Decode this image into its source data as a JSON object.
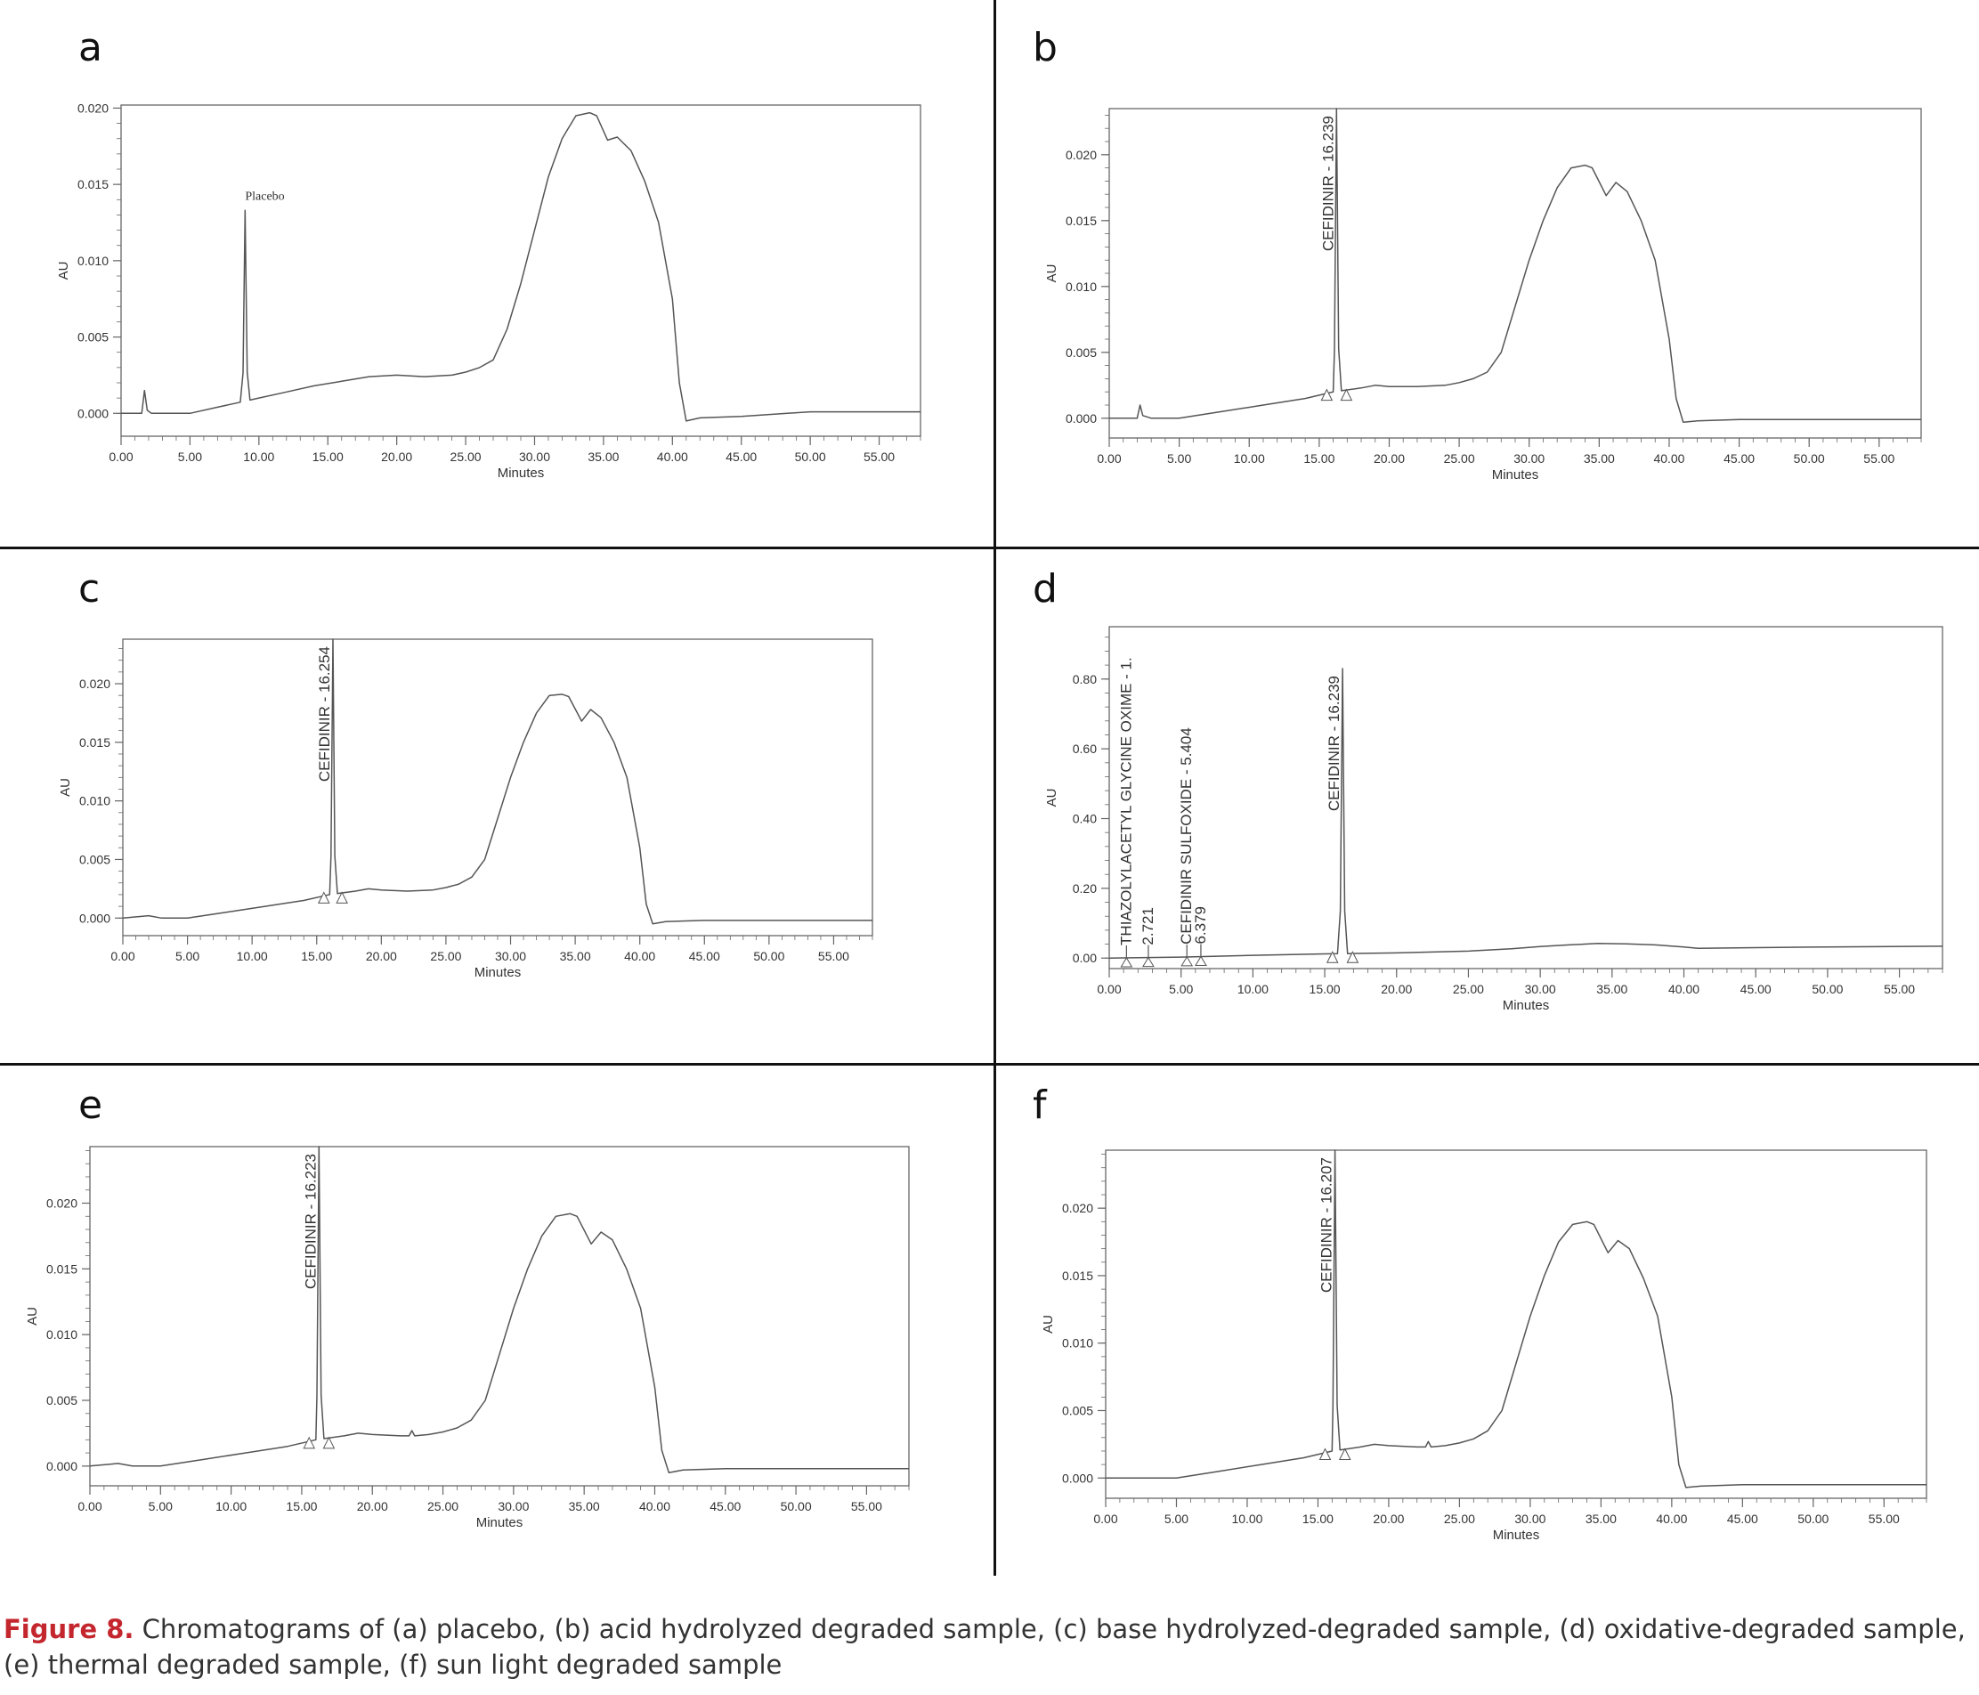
{
  "figure": {
    "caption_label": "Figure 8.",
    "caption_text": " Chromatograms of (a) placebo, (b) acid hydrolyzed degraded sample, (c) base hydrolyzed-degraded sample, (d) oxidative-degraded sample, (e) thermal degraded sample, (f) sun light degraded sample"
  },
  "colors": {
    "trace": "#555555",
    "frame": "#666666",
    "accent": "#c4262e"
  },
  "chart_data": [
    {
      "panel": "a",
      "type": "line",
      "xlabel": "Minutes",
      "ylabel": "AU",
      "xlim": [
        0,
        58
      ],
      "ylim": [
        -0.0015,
        0.0202
      ],
      "xticks": [
        "0.00",
        "5.00",
        "10.00",
        "15.00",
        "20.00",
        "25.00",
        "30.00",
        "35.00",
        "40.00",
        "45.00",
        "50.00",
        "55.00"
      ],
      "yticks": [
        "0.000",
        "0.005",
        "0.010",
        "0.015",
        "0.020"
      ],
      "peak": {
        "x": 9.0,
        "height": 0.0133,
        "label": "Placebo",
        "label_style": "horizontal",
        "markers": false
      },
      "x": [
        0,
        1.5,
        1.7,
        1.9,
        2.2,
        3,
        5,
        7,
        9,
        10,
        12,
        14,
        16,
        18,
        20,
        22,
        24,
        25,
        26,
        27,
        28,
        29,
        30,
        31,
        32,
        33,
        34,
        34.5,
        35.3,
        36,
        37,
        38,
        39,
        40,
        40.5,
        41,
        42,
        45,
        50,
        55,
        58
      ],
      "y": [
        0,
        0,
        0.0015,
        0.0002,
        0,
        0,
        0,
        0.0004,
        0.0008,
        0.001,
        0.0014,
        0.0018,
        0.0021,
        0.0024,
        0.0025,
        0.0024,
        0.0025,
        0.0027,
        0.003,
        0.0035,
        0.0055,
        0.0085,
        0.012,
        0.0155,
        0.018,
        0.0195,
        0.0197,
        0.0195,
        0.0179,
        0.0181,
        0.0172,
        0.0152,
        0.0125,
        0.0075,
        0.002,
        -0.0005,
        -0.0003,
        -0.0002,
        0.0001,
        0.0001,
        0.0001
      ]
    },
    {
      "panel": "b",
      "type": "line",
      "xlabel": "Minutes",
      "ylabel": "AU",
      "xlim": [
        0,
        58
      ],
      "ylim": [
        -0.0015,
        0.0235
      ],
      "xticks": [
        "0.00",
        "5.00",
        "10.00",
        "15.00",
        "20.00",
        "25.00",
        "30.00",
        "35.00",
        "40.00",
        "45.00",
        "50.00",
        "55.00"
      ],
      "yticks": [
        "0.000",
        "0.005",
        "0.010",
        "0.015",
        "0.020"
      ],
      "peak": {
        "x": 16.239,
        "height": 0.0235,
        "label": "CEFIDINIR - 16.239",
        "label_style": "vertical",
        "markers": true
      },
      "x": [
        0,
        2,
        2.2,
        2.4,
        3,
        5,
        8,
        11,
        14,
        16,
        18,
        19,
        20,
        22,
        24,
        25,
        26,
        27,
        28,
        29,
        30,
        31,
        32,
        33,
        34,
        34.5,
        35.5,
        36.2,
        37,
        38,
        39,
        40,
        40.5,
        41,
        42,
        45,
        50,
        55,
        58
      ],
      "y": [
        0,
        0,
        0.001,
        0.0002,
        0,
        0,
        0.0005,
        0.001,
        0.0015,
        0.002,
        0.0023,
        0.0025,
        0.0024,
        0.0024,
        0.0025,
        0.0027,
        0.003,
        0.0035,
        0.005,
        0.0085,
        0.012,
        0.015,
        0.0175,
        0.019,
        0.0192,
        0.019,
        0.0169,
        0.0179,
        0.0172,
        0.015,
        0.012,
        0.006,
        0.0015,
        -0.0003,
        -0.0002,
        -0.0001,
        -0.0001,
        -0.0001,
        -0.0001
      ]
    },
    {
      "panel": "c",
      "type": "line",
      "xlabel": "Minutes",
      "ylabel": "AU",
      "xlim": [
        0,
        58
      ],
      "ylim": [
        -0.0015,
        0.0238
      ],
      "xticks": [
        "0.00",
        "5.00",
        "10.00",
        "15.00",
        "20.00",
        "25.00",
        "30.00",
        "35.00",
        "40.00",
        "45.00",
        "50.00",
        "55.00"
      ],
      "yticks": [
        "0.000",
        "0.005",
        "0.010",
        "0.015",
        "0.020"
      ],
      "peak": {
        "x": 16.254,
        "height": 0.0238,
        "label": "CEFIDINIR - 16.254",
        "label_style": "vertical",
        "markers": true
      },
      "x": [
        0,
        2,
        3,
        5,
        8,
        11,
        14,
        16,
        18,
        19,
        20,
        22,
        24,
        25,
        26,
        27,
        28,
        29,
        30,
        31,
        32,
        33,
        34,
        34.5,
        35.5,
        36.2,
        37,
        38,
        39,
        40,
        40.5,
        41,
        42,
        45,
        50,
        55,
        58
      ],
      "y": [
        0,
        0.0002,
        0,
        0,
        0.0005,
        0.001,
        0.0015,
        0.002,
        0.0023,
        0.0025,
        0.0024,
        0.0023,
        0.0024,
        0.0026,
        0.0029,
        0.0035,
        0.005,
        0.0085,
        0.012,
        0.015,
        0.0175,
        0.019,
        0.0191,
        0.0189,
        0.0168,
        0.0178,
        0.0171,
        0.015,
        0.012,
        0.006,
        0.0012,
        -0.0005,
        -0.0003,
        -0.0002,
        -0.0002,
        -0.0002,
        -0.0002
      ]
    },
    {
      "panel": "d",
      "type": "line",
      "xlabel": "Minutes",
      "ylabel": "AU",
      "xlim": [
        0,
        58
      ],
      "ylim": [
        -0.03,
        0.95
      ],
      "xticks": [
        "0.00",
        "5.00",
        "10.00",
        "15.00",
        "20.00",
        "25.00",
        "30.00",
        "35.00",
        "40.00",
        "45.00",
        "50.00",
        "55.00"
      ],
      "yticks": [
        "0.00",
        "0.20",
        "0.40",
        "0.60",
        "0.80"
      ],
      "peak": {
        "x": 16.239,
        "height": 0.83,
        "label": "CEFIDINIR - 16.239",
        "label_style": "vertical",
        "markers": true
      },
      "minor_peaks": [
        {
          "x": 1.2,
          "label": "THIAZOLYLACETYL GLYCINE OXIME - 1."
        },
        {
          "x": 2.721,
          "label": "2.721"
        },
        {
          "x": 5.404,
          "label": "CEFIDINIR SULFOXIDE - 5.404"
        },
        {
          "x": 6.379,
          "label": "6.379"
        }
      ],
      "x": [
        0,
        5,
        10,
        15,
        20,
        25,
        28,
        30,
        32,
        34,
        36,
        38,
        40,
        41,
        45,
        50,
        58
      ],
      "y": [
        0,
        0.003,
        0.008,
        0.012,
        0.015,
        0.02,
        0.027,
        0.033,
        0.038,
        0.042,
        0.041,
        0.038,
        0.032,
        0.028,
        0.03,
        0.032,
        0.034
      ]
    },
    {
      "panel": "e",
      "type": "line",
      "xlabel": "Minutes",
      "ylabel": "AU",
      "xlim": [
        0,
        58
      ],
      "ylim": [
        -0.0015,
        0.0243
      ],
      "xticks": [
        "0.00",
        "5.00",
        "10.00",
        "15.00",
        "20.00",
        "25.00",
        "30.00",
        "35.00",
        "40.00",
        "45.00",
        "50.00",
        "55.00"
      ],
      "yticks": [
        "0.000",
        "0.005",
        "0.010",
        "0.015",
        "0.020"
      ],
      "peak": {
        "x": 16.223,
        "height": 0.0243,
        "label": "CEFIDINIR - 16.223",
        "label_style": "vertical",
        "markers": true
      },
      "x": [
        0,
        2,
        3,
        5,
        8,
        11,
        14,
        16,
        18,
        19,
        20,
        22,
        22.6,
        22.8,
        23,
        24,
        25,
        26,
        27,
        28,
        29,
        30,
        31,
        32,
        33,
        34,
        34.5,
        35.5,
        36.2,
        37,
        38,
        39,
        40,
        40.5,
        41,
        42,
        45,
        50,
        55,
        58
      ],
      "y": [
        0,
        0.0002,
        0,
        0,
        0.0005,
        0.001,
        0.0015,
        0.002,
        0.0023,
        0.0025,
        0.0024,
        0.0023,
        0.0023,
        0.0027,
        0.0023,
        0.0024,
        0.0026,
        0.0029,
        0.0035,
        0.005,
        0.0085,
        0.012,
        0.015,
        0.0175,
        0.019,
        0.0192,
        0.019,
        0.0169,
        0.0178,
        0.0172,
        0.015,
        0.012,
        0.006,
        0.0012,
        -0.0005,
        -0.0003,
        -0.0002,
        -0.0002,
        -0.0002,
        -0.0002
      ]
    },
    {
      "panel": "f",
      "type": "line",
      "xlabel": "Minutes",
      "ylabel": "AU",
      "xlim": [
        0,
        58
      ],
      "ylim": [
        -0.0015,
        0.0243
      ],
      "xticks": [
        "0.00",
        "5.00",
        "10.00",
        "15.00",
        "20.00",
        "25.00",
        "30.00",
        "35.00",
        "40.00",
        "45.00",
        "50.00",
        "55.00"
      ],
      "yticks": [
        "0.000",
        "0.005",
        "0.010",
        "0.015",
        "0.020"
      ],
      "peak": {
        "x": 16.207,
        "height": 0.0243,
        "label": "CEFIDINIR - 16.207",
        "label_style": "vertical",
        "markers": true
      },
      "x": [
        0,
        3,
        5,
        8,
        11,
        14,
        16,
        18,
        19,
        20,
        22,
        22.6,
        22.8,
        23,
        24,
        25,
        26,
        27,
        28,
        29,
        30,
        31,
        32,
        33,
        34,
        34.5,
        35.5,
        36.2,
        37,
        38,
        39,
        40,
        40.5,
        41,
        42,
        45,
        50,
        55,
        58
      ],
      "y": [
        0,
        0,
        0,
        0.0005,
        0.001,
        0.0015,
        0.002,
        0.0023,
        0.0025,
        0.0024,
        0.0023,
        0.0023,
        0.0027,
        0.0023,
        0.0024,
        0.0026,
        0.0029,
        0.0035,
        0.005,
        0.0085,
        0.012,
        0.015,
        0.0175,
        0.0188,
        0.019,
        0.0188,
        0.0167,
        0.0176,
        0.017,
        0.0148,
        0.012,
        0.006,
        0.001,
        -0.0007,
        -0.0006,
        -0.0005,
        -0.0005,
        -0.0005,
        -0.0005
      ]
    }
  ]
}
